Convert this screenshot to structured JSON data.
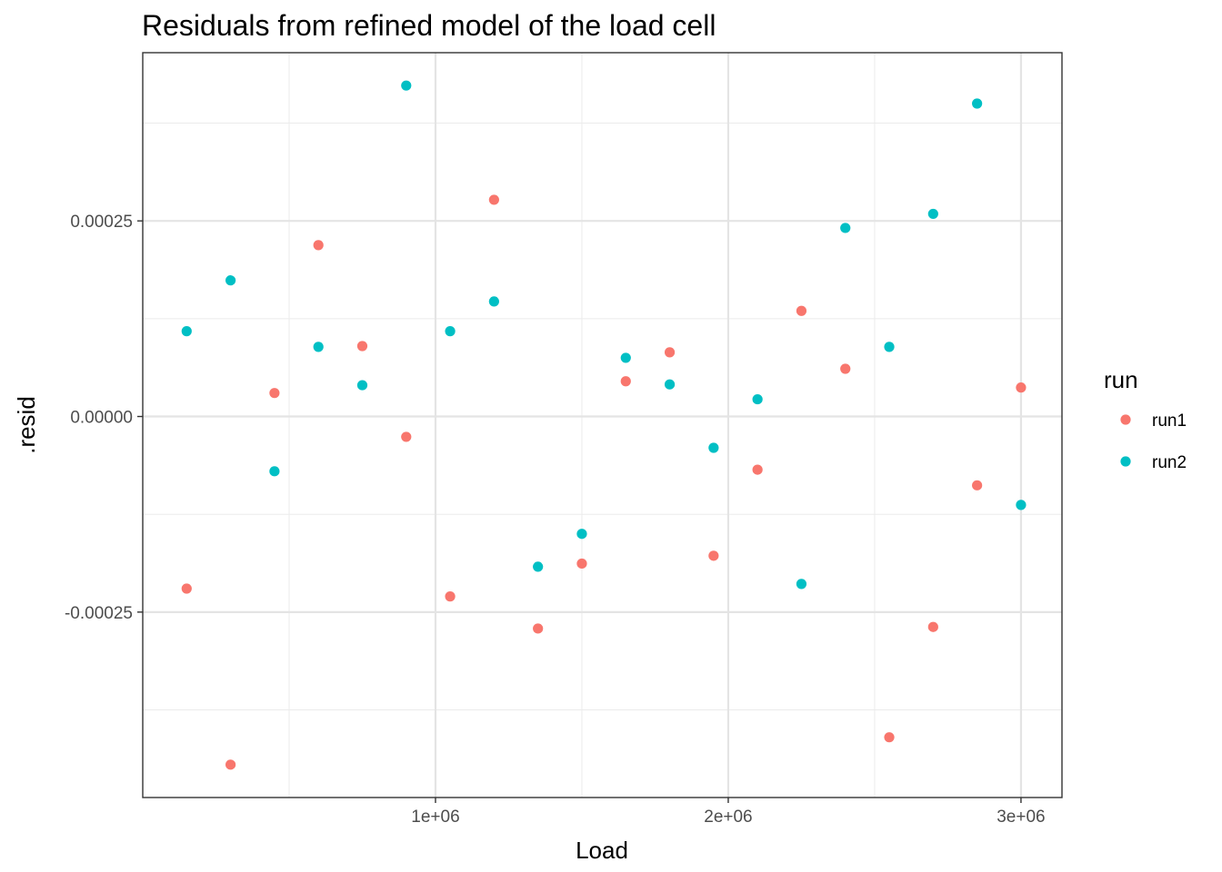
{
  "chart_data": {
    "type": "scatter",
    "title": "Residuals from refined model of the load cell",
    "xlabel": "Load",
    "ylabel": ".resid",
    "xlim": [
      0,
      3140000
    ],
    "ylim": [
      -0.000487,
      0.000465
    ],
    "x_ticks": [
      {
        "value": 1000000,
        "label": "1e+06"
      },
      {
        "value": 2000000,
        "label": "2e+06"
      },
      {
        "value": 3000000,
        "label": "3e+06"
      }
    ],
    "x_minor_ticks": [
      500000,
      1500000,
      2500000
    ],
    "y_ticks": [
      {
        "value": 0.00025,
        "label": "0.00025"
      },
      {
        "value": 0.0,
        "label": "0.00000"
      },
      {
        "value": -0.00025,
        "label": "-0.00025"
      }
    ],
    "y_minor_ticks": [
      0.000375,
      0.000125,
      -0.000125,
      -0.000375
    ],
    "grid": true,
    "legend": {
      "title": "run",
      "position": "right"
    },
    "series": [
      {
        "name": "run1",
        "color": "#F8766D",
        "points": [
          {
            "x": 150000,
            "y": -0.00022
          },
          {
            "x": 300000,
            "y": -0.000445
          },
          {
            "x": 450000,
            "y": 3e-05
          },
          {
            "x": 600000,
            "y": 0.000219
          },
          {
            "x": 750000,
            "y": 9e-05
          },
          {
            "x": 900000,
            "y": -2.6e-05
          },
          {
            "x": 1050000,
            "y": -0.00023
          },
          {
            "x": 1200000,
            "y": 0.000277
          },
          {
            "x": 1350000,
            "y": -0.000271
          },
          {
            "x": 1500000,
            "y": -0.000188
          },
          {
            "x": 1650000,
            "y": 4.5e-05
          },
          {
            "x": 1800000,
            "y": 8.2e-05
          },
          {
            "x": 1950000,
            "y": -0.000178
          },
          {
            "x": 2100000,
            "y": -6.8e-05
          },
          {
            "x": 2250000,
            "y": 0.000135
          },
          {
            "x": 2400000,
            "y": 6.1e-05
          },
          {
            "x": 2550000,
            "y": -0.00041
          },
          {
            "x": 2700000,
            "y": -0.000269
          },
          {
            "x": 2850000,
            "y": -8.8e-05
          },
          {
            "x": 3000000,
            "y": 3.7e-05
          }
        ]
      },
      {
        "name": "run2",
        "color": "#00BFC4",
        "points": [
          {
            "x": 150000,
            "y": 0.000109
          },
          {
            "x": 300000,
            "y": 0.000174
          },
          {
            "x": 450000,
            "y": -7e-05
          },
          {
            "x": 600000,
            "y": 8.9e-05
          },
          {
            "x": 750000,
            "y": 4e-05
          },
          {
            "x": 900000,
            "y": 0.000423
          },
          {
            "x": 1050000,
            "y": 0.000109
          },
          {
            "x": 1200000,
            "y": 0.000147
          },
          {
            "x": 1350000,
            "y": -0.000192
          },
          {
            "x": 1500000,
            "y": -0.00015
          },
          {
            "x": 1650000,
            "y": 7.5e-05
          },
          {
            "x": 1800000,
            "y": 4.1e-05
          },
          {
            "x": 1950000,
            "y": -4e-05
          },
          {
            "x": 2100000,
            "y": 2.2e-05
          },
          {
            "x": 2250000,
            "y": -0.000214
          },
          {
            "x": 2400000,
            "y": 0.000241
          },
          {
            "x": 2550000,
            "y": 8.9e-05
          },
          {
            "x": 2700000,
            "y": 0.000259
          },
          {
            "x": 2850000,
            "y": 0.0004
          },
          {
            "x": 3000000,
            "y": -0.000113
          }
        ]
      }
    ]
  }
}
